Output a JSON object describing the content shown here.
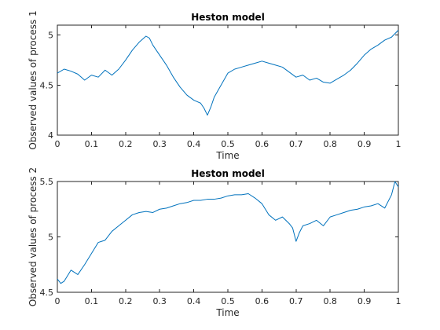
{
  "chart_data": [
    {
      "type": "line",
      "title": "Heston model",
      "xlabel": "Time",
      "ylabel": "Observed values of process 1",
      "xlim": [
        0,
        1
      ],
      "ylim": [
        4,
        5.1
      ],
      "xticks": [
        "0",
        "0.1",
        "0.2",
        "0.3",
        "0.4",
        "0.5",
        "0.6",
        "0.7",
        "0.8",
        "0.9",
        "1"
      ],
      "xtick_values": [
        0,
        0.1,
        0.2,
        0.3,
        0.4,
        0.5,
        0.6,
        0.7,
        0.8,
        0.9,
        1
      ],
      "yticks": [
        "4",
        "4.5",
        "5"
      ],
      "ytick_values": [
        4,
        4.5,
        5
      ],
      "grid": false,
      "color": "#0072BD",
      "series": [
        {
          "x": [
            0,
            0.02,
            0.04,
            0.06,
            0.08,
            0.1,
            0.12,
            0.14,
            0.16,
            0.18,
            0.2,
            0.22,
            0.24,
            0.26,
            0.27,
            0.28,
            0.3,
            0.32,
            0.34,
            0.36,
            0.38,
            0.4,
            0.42,
            0.43,
            0.44,
            0.45,
            0.46,
            0.48,
            0.5,
            0.52,
            0.54,
            0.56,
            0.58,
            0.6,
            0.62,
            0.64,
            0.66,
            0.68,
            0.7,
            0.72,
            0.74,
            0.76,
            0.78,
            0.8,
            0.82,
            0.84,
            0.86,
            0.88,
            0.9,
            0.92,
            0.94,
            0.96,
            0.98,
            1.0
          ],
          "y": [
            4.62,
            4.66,
            4.64,
            4.61,
            4.55,
            4.6,
            4.58,
            4.65,
            4.6,
            4.66,
            4.75,
            4.85,
            4.93,
            4.99,
            4.97,
            4.9,
            4.8,
            4.7,
            4.58,
            4.48,
            4.4,
            4.35,
            4.32,
            4.27,
            4.2,
            4.28,
            4.38,
            4.5,
            4.62,
            4.66,
            4.68,
            4.7,
            4.72,
            4.74,
            4.72,
            4.7,
            4.68,
            4.63,
            4.58,
            4.6,
            4.55,
            4.57,
            4.53,
            4.52,
            4.56,
            4.6,
            4.65,
            4.72,
            4.8,
            4.86,
            4.9,
            4.95,
            4.98,
            5.05
          ]
        }
      ]
    },
    {
      "type": "line",
      "title": "Heston model",
      "xlabel": "Time",
      "ylabel": "Observed values of process 2",
      "xlim": [
        0,
        1
      ],
      "ylim": [
        4.5,
        5.5
      ],
      "xticks": [
        "0",
        "0.1",
        "0.2",
        "0.3",
        "0.4",
        "0.5",
        "0.6",
        "0.7",
        "0.8",
        "0.9",
        "1"
      ],
      "xtick_values": [
        0,
        0.1,
        0.2,
        0.3,
        0.4,
        0.5,
        0.6,
        0.7,
        0.8,
        0.9,
        1
      ],
      "yticks": [
        "4.5",
        "5",
        "5.5"
      ],
      "ytick_values": [
        4.5,
        5,
        5.5
      ],
      "grid": false,
      "color": "#0072BD",
      "series": [
        {
          "x": [
            0,
            0.01,
            0.02,
            0.04,
            0.06,
            0.08,
            0.1,
            0.12,
            0.14,
            0.16,
            0.18,
            0.2,
            0.22,
            0.24,
            0.26,
            0.28,
            0.3,
            0.32,
            0.34,
            0.36,
            0.38,
            0.4,
            0.42,
            0.44,
            0.46,
            0.48,
            0.5,
            0.52,
            0.54,
            0.56,
            0.58,
            0.6,
            0.62,
            0.64,
            0.66,
            0.68,
            0.69,
            0.7,
            0.71,
            0.72,
            0.74,
            0.76,
            0.78,
            0.8,
            0.82,
            0.84,
            0.86,
            0.88,
            0.9,
            0.92,
            0.94,
            0.96,
            0.98,
            0.99,
            1.0
          ],
          "y": [
            4.62,
            4.58,
            4.6,
            4.7,
            4.66,
            4.75,
            4.85,
            4.95,
            4.97,
            5.05,
            5.1,
            5.15,
            5.2,
            5.22,
            5.23,
            5.22,
            5.25,
            5.26,
            5.28,
            5.3,
            5.31,
            5.33,
            5.33,
            5.34,
            5.34,
            5.35,
            5.37,
            5.38,
            5.38,
            5.39,
            5.35,
            5.3,
            5.2,
            5.15,
            5.18,
            5.12,
            5.08,
            4.96,
            5.04,
            5.1,
            5.12,
            5.15,
            5.1,
            5.18,
            5.2,
            5.22,
            5.24,
            5.25,
            5.27,
            5.28,
            5.3,
            5.26,
            5.38,
            5.5,
            5.45
          ]
        }
      ]
    }
  ]
}
